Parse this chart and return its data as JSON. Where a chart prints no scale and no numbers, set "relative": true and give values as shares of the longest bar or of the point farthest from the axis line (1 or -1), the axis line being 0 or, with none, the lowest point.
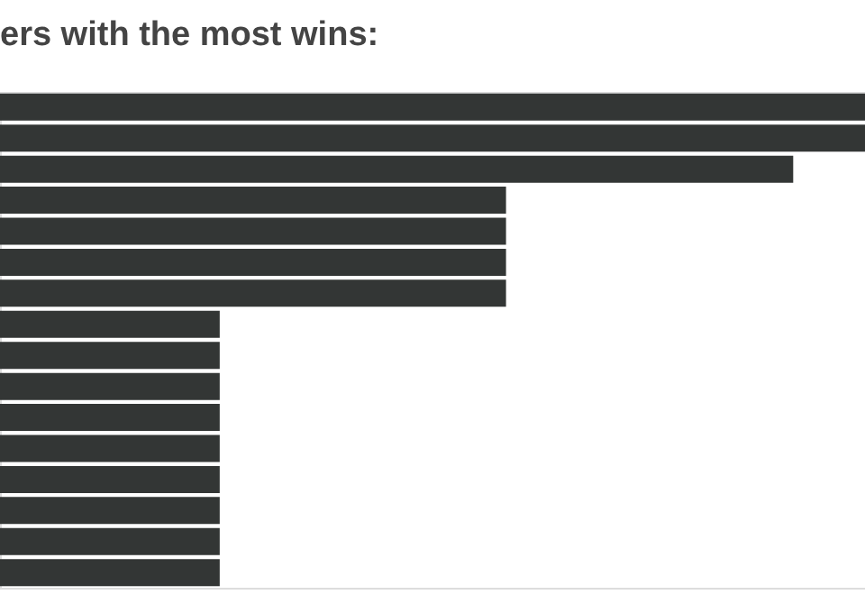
{
  "chart_data": {
    "type": "bar",
    "orientation": "horizontal",
    "relative": true,
    "title": "ers with the most wins:",
    "categories": [
      null,
      null,
      null,
      null,
      null,
      null,
      null,
      null,
      null,
      null,
      null,
      null,
      null,
      null,
      null,
      null
    ],
    "values": [
      1,
      1,
      0.917,
      0.585,
      0.585,
      0.585,
      0.585,
      0.254,
      0.254,
      0.254,
      0.254,
      0.254,
      0.254,
      0.254,
      0.254,
      0.254
    ],
    "color": "#333635"
  }
}
